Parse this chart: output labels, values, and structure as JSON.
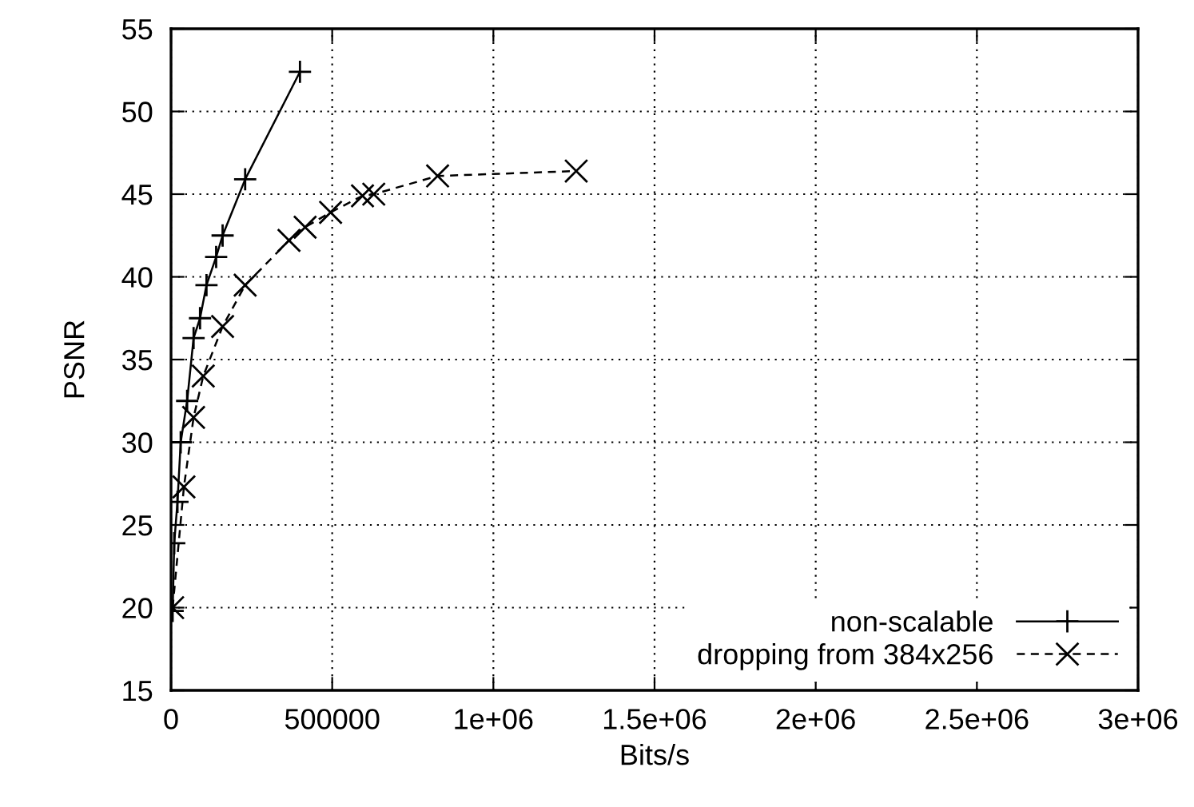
{
  "chart_data": {
    "type": "line",
    "xlabel": "Bits/s",
    "ylabel": "PSNR",
    "xlim": [
      0,
      3000000
    ],
    "xticks": [
      0,
      500000,
      {
        "value": 1000000,
        "label": "1e+06"
      },
      {
        "value": 1500000,
        "label": "1.5e+06"
      },
      {
        "value": 2000000,
        "label": "2e+06"
      },
      {
        "value": 2500000,
        "label": "2.5e+06"
      },
      {
        "value": 3000000,
        "label": "3e+06"
      }
    ],
    "ylim": [
      15,
      55
    ],
    "yticks": [
      15,
      20,
      25,
      30,
      35,
      40,
      45,
      50,
      55
    ],
    "grid": true,
    "legend": "bottom right",
    "series": [
      {
        "name": "non-scalable",
        "color": "#000000",
        "marker": "plus",
        "line_style": "solid",
        "x": [
          5000,
          10000,
          20000,
          30000,
          50000,
          70000,
          90000,
          110000,
          140000,
          160000,
          230000,
          400000
        ],
        "values": [
          19.8,
          23.9,
          26.4,
          30,
          32.5,
          36.3,
          37.5,
          39.5,
          41.2,
          42.5,
          45.9,
          52.4
        ]
      },
      {
        "name": "dropping from 384x256",
        "color": "#000000",
        "marker": "cross",
        "line_style": "dashed",
        "x": [
          5000,
          40000,
          70000,
          100000,
          160000,
          230000,
          366000,
          416000,
          495000,
          594000,
          629000,
          827000,
          1257000
        ],
        "values": [
          20,
          27.3,
          31.5,
          34,
          37,
          39.5,
          42.2,
          43,
          43.9,
          44.9,
          45,
          46.1,
          46.4
        ]
      }
    ]
  }
}
